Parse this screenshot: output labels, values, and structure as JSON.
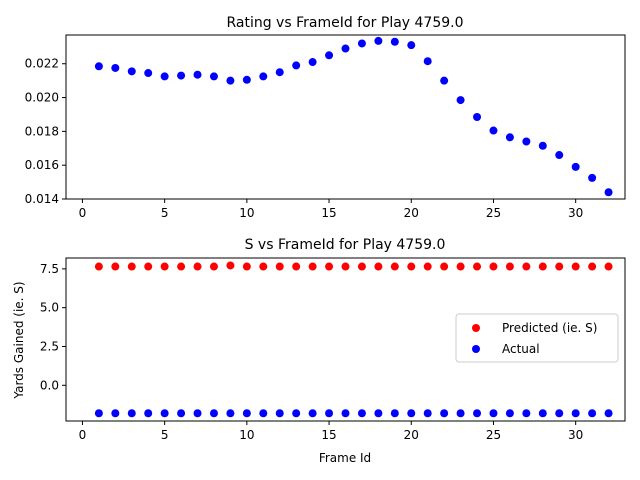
{
  "chart_data": [
    {
      "type": "scatter",
      "title": "Rating vs FrameId for Play 4759.0",
      "xlabel": "",
      "ylabel": "",
      "xlim": [
        -1,
        33
      ],
      "ylim": [
        0.014,
        0.0237
      ],
      "xticks": [
        0,
        5,
        10,
        15,
        20,
        25,
        30
      ],
      "xtick_labels": [
        "0",
        "5",
        "10",
        "15",
        "20",
        "25",
        "30"
      ],
      "yticks": [
        0.014,
        0.016,
        0.018,
        0.02,
        0.022
      ],
      "ytick_labels": [
        "0.014",
        "0.016",
        "0.018",
        "0.020",
        "0.022"
      ],
      "grid": false,
      "series": [
        {
          "color": "#0000ff",
          "x": [
            1,
            2,
            3,
            4,
            5,
            6,
            7,
            8,
            9,
            10,
            11,
            12,
            13,
            14,
            15,
            16,
            17,
            18,
            19,
            20,
            21,
            22,
            23,
            24,
            25,
            26,
            27,
            28,
            29,
            30,
            31,
            32
          ],
          "y": [
            0.02185,
            0.02175,
            0.02155,
            0.02145,
            0.02125,
            0.0213,
            0.02135,
            0.02125,
            0.021,
            0.02105,
            0.02125,
            0.0215,
            0.0219,
            0.0221,
            0.0225,
            0.0229,
            0.0232,
            0.02335,
            0.0233,
            0.0231,
            0.02215,
            0.021,
            0.01985,
            0.01885,
            0.01805,
            0.01765,
            0.0174,
            0.01715,
            0.0166,
            0.0159,
            0.01525,
            0.0144
          ]
        }
      ]
    },
    {
      "type": "scatter",
      "title": "S vs FrameId for Play 4759.0",
      "xlabel": "Frame Id",
      "ylabel": "Yards Gained (ie. S)",
      "xlim": [
        -1,
        33
      ],
      "ylim": [
        -2.3,
        8.2
      ],
      "xticks": [
        0,
        5,
        10,
        15,
        20,
        25,
        30
      ],
      "xtick_labels": [
        "0",
        "5",
        "10",
        "15",
        "20",
        "25",
        "30"
      ],
      "yticks": [
        0.0,
        2.5,
        5.0,
        7.5
      ],
      "ytick_labels": [
        "0.0",
        "2.5",
        "5.0",
        "7.5"
      ],
      "grid": false,
      "legend": "center-right",
      "series": [
        {
          "name": "Predicted (ie. S)",
          "color": "#ff0000",
          "x": [
            1,
            2,
            3,
            4,
            5,
            6,
            7,
            8,
            9,
            10,
            11,
            12,
            13,
            14,
            15,
            16,
            17,
            18,
            19,
            20,
            21,
            22,
            23,
            24,
            25,
            26,
            27,
            28,
            29,
            30,
            31,
            32
          ],
          "y": [
            7.65,
            7.65,
            7.65,
            7.65,
            7.65,
            7.65,
            7.65,
            7.65,
            7.72,
            7.65,
            7.65,
            7.65,
            7.65,
            7.65,
            7.65,
            7.65,
            7.65,
            7.65,
            7.65,
            7.65,
            7.65,
            7.65,
            7.65,
            7.65,
            7.65,
            7.65,
            7.65,
            7.65,
            7.65,
            7.65,
            7.65,
            7.65
          ]
        },
        {
          "name": "Actual",
          "color": "#0000ff",
          "x": [
            1,
            2,
            3,
            4,
            5,
            6,
            7,
            8,
            9,
            10,
            11,
            12,
            13,
            14,
            15,
            16,
            17,
            18,
            19,
            20,
            21,
            22,
            23,
            24,
            25,
            26,
            27,
            28,
            29,
            30,
            31,
            32
          ],
          "y": [
            -1.8,
            -1.8,
            -1.8,
            -1.8,
            -1.8,
            -1.8,
            -1.8,
            -1.8,
            -1.8,
            -1.8,
            -1.8,
            -1.8,
            -1.8,
            -1.8,
            -1.8,
            -1.8,
            -1.8,
            -1.8,
            -1.8,
            -1.8,
            -1.8,
            -1.8,
            -1.8,
            -1.8,
            -1.8,
            -1.8,
            -1.8,
            -1.8,
            -1.8,
            -1.8,
            -1.8,
            -1.8
          ]
        }
      ]
    }
  ]
}
